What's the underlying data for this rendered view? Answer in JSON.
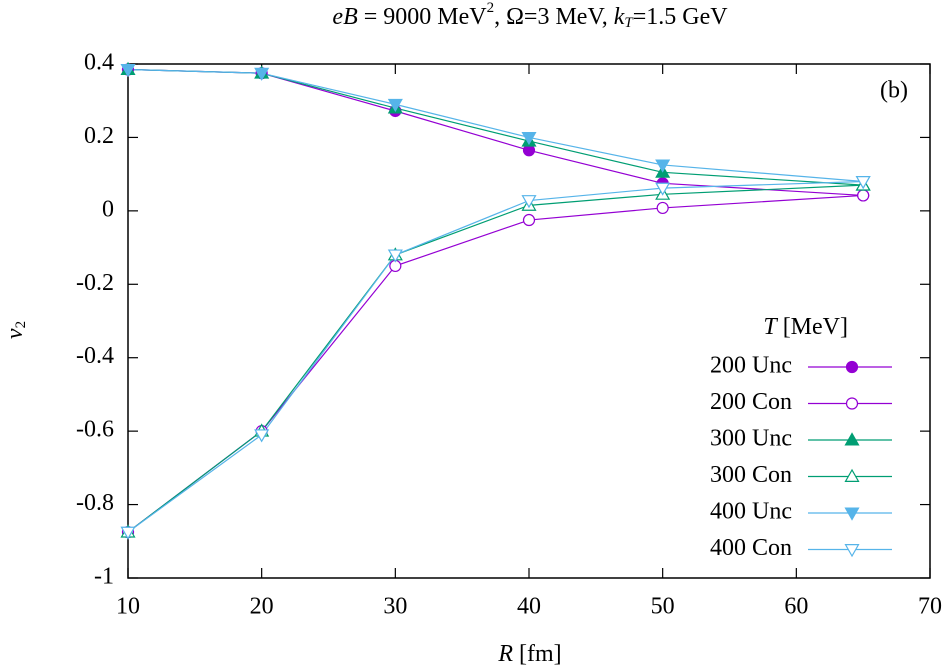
{
  "chart_data": {
    "type": "line",
    "title_parts": [
      "eB",
      " = 9000 MeV",
      "2",
      ", Ω=3 MeV, ",
      "k",
      "T",
      "=1.5 GeV"
    ],
    "y_label_parts": [
      "v",
      "2"
    ],
    "x_label_parts": [
      "R",
      " [fm]"
    ],
    "annotation": "(b)",
    "legend_title_parts": [
      "T",
      " [MeV]"
    ],
    "legend_position": "lower-right",
    "x": [
      10,
      20,
      30,
      40,
      50,
      65
    ],
    "xlim": [
      10,
      70
    ],
    "xticks": [
      10,
      20,
      30,
      40,
      50,
      60,
      70
    ],
    "ylim": [
      -1,
      0.4
    ],
    "yticks": [
      -1,
      -0.8,
      -0.6,
      -0.4,
      -0.2,
      0,
      0.2,
      0.4
    ],
    "series": [
      {
        "name": "200 Unc",
        "color": "#9400d3",
        "marker": "circle",
        "values": [
          0.385,
          0.375,
          0.272,
          0.165,
          0.075,
          0.042
        ]
      },
      {
        "name": "200 Con",
        "color": "#9400d3",
        "marker": "circle-open",
        "values": [
          -0.875,
          -0.6,
          -0.15,
          -0.025,
          0.008,
          0.042
        ]
      },
      {
        "name": "300 Unc",
        "color": "#009e73",
        "marker": "triangle",
        "values": [
          0.385,
          0.375,
          0.28,
          0.19,
          0.105,
          0.07
        ]
      },
      {
        "name": "300 Con",
        "color": "#009e73",
        "marker": "triangle-open",
        "values": [
          -0.875,
          -0.6,
          -0.12,
          0.015,
          0.045,
          0.07
        ]
      },
      {
        "name": "400 Unc",
        "color": "#56b4e9",
        "marker": "triangle-down",
        "values": [
          0.385,
          0.375,
          0.29,
          0.2,
          0.125,
          0.08
        ]
      },
      {
        "name": "400 Con",
        "color": "#56b4e9",
        "marker": "triangle-down-open",
        "values": [
          -0.875,
          -0.61,
          -0.12,
          0.028,
          0.062,
          0.08
        ]
      }
    ]
  }
}
